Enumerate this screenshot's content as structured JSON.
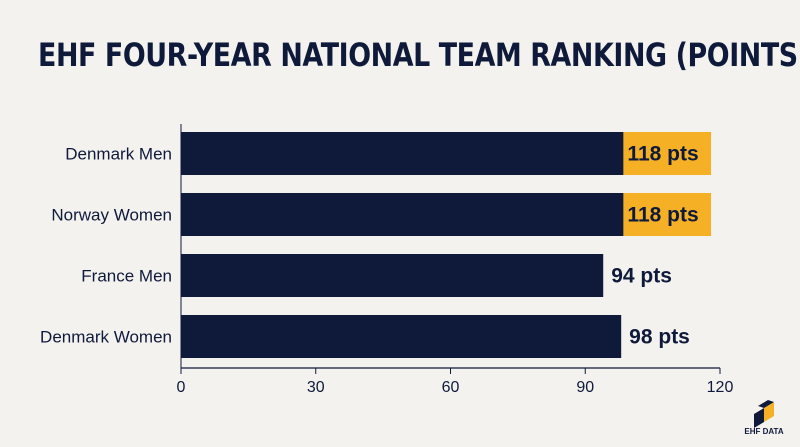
{
  "chart_data": {
    "type": "bar",
    "orientation": "horizontal",
    "title": "EHF FOUR-YEAR NATIONAL TEAM RANKING (POINTS)",
    "xlabel": "",
    "ylabel": "",
    "xlim": [
      0,
      120
    ],
    "xticks": [
      "0",
      "30",
      "60",
      "90",
      "120"
    ],
    "categories": [
      "Denmark Men",
      "Norway Women",
      "France Men",
      "Denmark Women"
    ],
    "values": [
      118,
      118,
      94,
      98
    ],
    "data_labels": [
      "118 pts",
      "118 pts",
      "94 pts",
      "98 pts"
    ],
    "grid": false,
    "colors": {
      "bar": "#0f1a3a",
      "highlight": "#f5b026",
      "text": "#0f1a3a"
    }
  },
  "logo": {
    "text": "EHF DATA"
  }
}
